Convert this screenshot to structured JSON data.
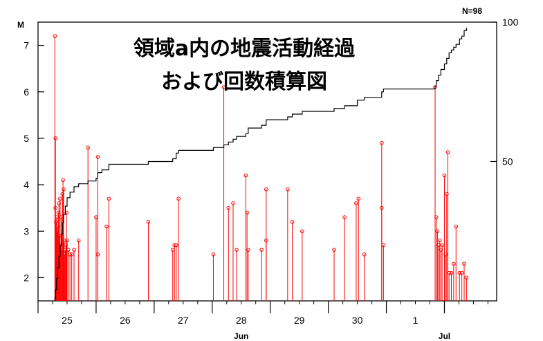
{
  "chart_data": {
    "type": "stem-with-cumulative-line",
    "title_lines": [
      "領域a内の地震活動経過",
      "および回数積算図"
    ],
    "left_axis": {
      "label": "M",
      "ticks": [
        2,
        3,
        4,
        5,
        6,
        7
      ],
      "range": [
        1.5,
        7.5
      ]
    },
    "right_axis": {
      "label": "N=98",
      "ticks": [
        50,
        100
      ],
      "range": [
        0,
        100
      ]
    },
    "x_axis": {
      "unit": "day",
      "range": [
        24.5,
        32.4
      ],
      "day_labels": [
        {
          "x": 25,
          "label": "25"
        },
        {
          "x": 26,
          "label": "26"
        },
        {
          "x": 27,
          "label": "27"
        },
        {
          "x": 28,
          "label": "28"
        },
        {
          "x": 29,
          "label": "29"
        },
        {
          "x": 30,
          "label": "30"
        },
        {
          "x": 31,
          "label": "1"
        }
      ],
      "major_ticks": [
        24.5,
        25.5,
        26.5,
        27.5,
        28.5,
        29.5,
        30.5,
        31.5
      ],
      "month_labels": [
        {
          "x": 28,
          "label": "Jun"
        },
        {
          "x": 31.5,
          "label": "Jul"
        }
      ]
    },
    "series": [
      {
        "type": "stem",
        "color": "#ff0000",
        "points": [
          {
            "t": 24.79,
            "m": 7.2
          },
          {
            "t": 24.8,
            "m": 5.0
          },
          {
            "t": 24.8,
            "m": 3.5
          },
          {
            "t": 24.81,
            "m": 3.2
          },
          {
            "t": 24.82,
            "m": 3.3
          },
          {
            "t": 24.83,
            "m": 3.0
          },
          {
            "t": 24.84,
            "m": 3.1
          },
          {
            "t": 24.85,
            "m": 3.4
          },
          {
            "t": 24.86,
            "m": 3.6
          },
          {
            "t": 24.87,
            "m": 2.9
          },
          {
            "t": 24.88,
            "m": 3.7
          },
          {
            "t": 24.89,
            "m": 2.7
          },
          {
            "t": 24.9,
            "m": 3.3
          },
          {
            "t": 24.91,
            "m": 2.6
          },
          {
            "t": 24.92,
            "m": 3.8
          },
          {
            "t": 24.93,
            "m": 4.1
          },
          {
            "t": 24.94,
            "m": 3.9
          },
          {
            "t": 24.95,
            "m": 2.8
          },
          {
            "t": 24.96,
            "m": 2.5
          },
          {
            "t": 24.97,
            "m": 2.6
          },
          {
            "t": 24.98,
            "m": 2.7
          },
          {
            "t": 24.99,
            "m": 3.4
          },
          {
            "t": 25.0,
            "m": 2.8
          },
          {
            "t": 25.02,
            "m": 2.6
          },
          {
            "t": 25.05,
            "m": 2.5
          },
          {
            "t": 25.08,
            "m": 2.5
          },
          {
            "t": 25.12,
            "m": 2.6
          },
          {
            "t": 25.2,
            "m": 2.8
          },
          {
            "t": 25.36,
            "m": 4.8
          },
          {
            "t": 25.5,
            "m": 3.3
          },
          {
            "t": 25.53,
            "m": 4.6
          },
          {
            "t": 25.53,
            "m": 2.5
          },
          {
            "t": 25.68,
            "m": 3.1
          },
          {
            "t": 25.72,
            "m": 3.7
          },
          {
            "t": 26.4,
            "m": 3.2
          },
          {
            "t": 26.82,
            "m": 2.6
          },
          {
            "t": 26.85,
            "m": 2.7
          },
          {
            "t": 26.88,
            "m": 2.7
          },
          {
            "t": 26.92,
            "m": 3.7
          },
          {
            "t": 27.52,
            "m": 2.5
          },
          {
            "t": 27.7,
            "m": 6.1
          },
          {
            "t": 27.78,
            "m": 3.5
          },
          {
            "t": 27.86,
            "m": 3.6
          },
          {
            "t": 27.92,
            "m": 2.6
          },
          {
            "t": 28.08,
            "m": 4.2
          },
          {
            "t": 28.1,
            "m": 3.4
          },
          {
            "t": 28.12,
            "m": 2.6
          },
          {
            "t": 28.35,
            "m": 2.6
          },
          {
            "t": 28.43,
            "m": 3.9
          },
          {
            "t": 28.43,
            "m": 2.8
          },
          {
            "t": 28.8,
            "m": 3.9
          },
          {
            "t": 28.88,
            "m": 3.2
          },
          {
            "t": 29.05,
            "m": 3.0
          },
          {
            "t": 29.6,
            "m": 2.6
          },
          {
            "t": 29.78,
            "m": 3.3
          },
          {
            "t": 29.98,
            "m": 3.6
          },
          {
            "t": 30.02,
            "m": 3.7
          },
          {
            "t": 30.12,
            "m": 2.5
          },
          {
            "t": 30.42,
            "m": 4.9
          },
          {
            "t": 30.42,
            "m": 3.5
          },
          {
            "t": 30.45,
            "m": 2.7
          },
          {
            "t": 31.34,
            "m": 6.1
          },
          {
            "t": 31.36,
            "m": 3.3
          },
          {
            "t": 31.38,
            "m": 3.0
          },
          {
            "t": 31.4,
            "m": 2.7
          },
          {
            "t": 31.42,
            "m": 2.8
          },
          {
            "t": 31.44,
            "m": 2.6
          },
          {
            "t": 31.46,
            "m": 2.7
          },
          {
            "t": 31.5,
            "m": 4.2
          },
          {
            "t": 31.52,
            "m": 2.5
          },
          {
            "t": 31.54,
            "m": 3.8
          },
          {
            "t": 31.56,
            "m": 4.7
          },
          {
            "t": 31.58,
            "m": 2.1
          },
          {
            "t": 31.62,
            "m": 2.1
          },
          {
            "t": 31.66,
            "m": 2.3
          },
          {
            "t": 31.7,
            "m": 3.1
          },
          {
            "t": 31.76,
            "m": 2.1
          },
          {
            "t": 31.8,
            "m": 2.1
          },
          {
            "t": 31.84,
            "m": 2.3
          },
          {
            "t": 31.88,
            "m": 2.0
          }
        ]
      },
      {
        "type": "cumulative-step",
        "color": "#000000",
        "points": [
          {
            "t": 24.78,
            "n": 0
          },
          {
            "t": 24.79,
            "n": 1
          },
          {
            "t": 24.8,
            "n": 4
          },
          {
            "t": 24.82,
            "n": 8
          },
          {
            "t": 24.84,
            "n": 12
          },
          {
            "t": 24.86,
            "n": 16
          },
          {
            "t": 24.88,
            "n": 20
          },
          {
            "t": 24.9,
            "n": 24
          },
          {
            "t": 24.92,
            "n": 28
          },
          {
            "t": 24.94,
            "n": 31
          },
          {
            "t": 24.97,
            "n": 34
          },
          {
            "t": 25.0,
            "n": 37
          },
          {
            "t": 25.05,
            "n": 39
          },
          {
            "t": 25.12,
            "n": 41
          },
          {
            "t": 25.2,
            "n": 42
          },
          {
            "t": 25.36,
            "n": 43
          },
          {
            "t": 25.5,
            "n": 44
          },
          {
            "t": 25.53,
            "n": 46
          },
          {
            "t": 25.6,
            "n": 47
          },
          {
            "t": 25.72,
            "n": 49
          },
          {
            "t": 26.4,
            "n": 50
          },
          {
            "t": 26.82,
            "n": 51
          },
          {
            "t": 26.88,
            "n": 53
          },
          {
            "t": 26.92,
            "n": 54
          },
          {
            "t": 27.52,
            "n": 55
          },
          {
            "t": 27.7,
            "n": 56
          },
          {
            "t": 27.78,
            "n": 57
          },
          {
            "t": 27.86,
            "n": 58
          },
          {
            "t": 27.92,
            "n": 59
          },
          {
            "t": 28.08,
            "n": 60
          },
          {
            "t": 28.12,
            "n": 62
          },
          {
            "t": 28.35,
            "n": 63
          },
          {
            "t": 28.43,
            "n": 65
          },
          {
            "t": 28.8,
            "n": 66
          },
          {
            "t": 28.88,
            "n": 67
          },
          {
            "t": 29.05,
            "n": 68
          },
          {
            "t": 29.6,
            "n": 69
          },
          {
            "t": 29.78,
            "n": 70
          },
          {
            "t": 30.0,
            "n": 72
          },
          {
            "t": 30.12,
            "n": 73
          },
          {
            "t": 30.42,
            "n": 75
          },
          {
            "t": 30.45,
            "n": 76
          },
          {
            "t": 31.34,
            "n": 77
          },
          {
            "t": 31.36,
            "n": 79
          },
          {
            "t": 31.4,
            "n": 81
          },
          {
            "t": 31.44,
            "n": 83
          },
          {
            "t": 31.5,
            "n": 85
          },
          {
            "t": 31.54,
            "n": 87
          },
          {
            "t": 31.58,
            "n": 89
          },
          {
            "t": 31.62,
            "n": 90
          },
          {
            "t": 31.66,
            "n": 91
          },
          {
            "t": 31.7,
            "n": 92
          },
          {
            "t": 31.76,
            "n": 94
          },
          {
            "t": 31.8,
            "n": 95
          },
          {
            "t": 31.84,
            "n": 97
          },
          {
            "t": 31.88,
            "n": 98
          }
        ]
      }
    ],
    "colors": {
      "stem": "#ff0000",
      "cumulative": "#000000",
      "frame": "#000000"
    }
  }
}
